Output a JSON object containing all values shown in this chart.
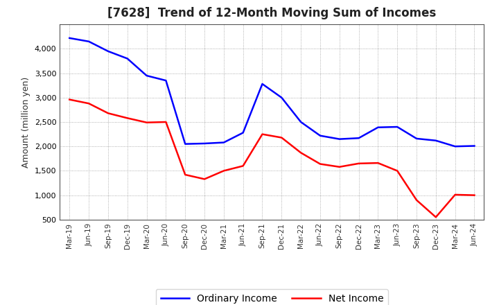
{
  "title": "[7628]  Trend of 12-Month Moving Sum of Incomes",
  "ylabel": "Amount (million yen)",
  "fig_background": "#ffffff",
  "plot_background": "#ffffff",
  "x_labels": [
    "Mar-19",
    "Jun-19",
    "Sep-19",
    "Dec-19",
    "Mar-20",
    "Jun-20",
    "Sep-20",
    "Dec-20",
    "Mar-21",
    "Jun-21",
    "Sep-21",
    "Dec-21",
    "Mar-22",
    "Jun-22",
    "Sep-22",
    "Dec-22",
    "Mar-23",
    "Jun-23",
    "Sep-23",
    "Dec-23",
    "Mar-24",
    "Jun-24"
  ],
  "ordinary_income": [
    4220,
    4150,
    3950,
    3800,
    3450,
    3350,
    2050,
    2060,
    2080,
    2280,
    3280,
    3000,
    2500,
    2220,
    2150,
    2170,
    2390,
    2400,
    2160,
    2120,
    2000,
    2010
  ],
  "net_income": [
    2960,
    2880,
    2680,
    2580,
    2490,
    2500,
    1420,
    1330,
    1500,
    1600,
    2250,
    2180,
    1870,
    1640,
    1580,
    1650,
    1660,
    1500,
    900,
    550,
    1010,
    1000
  ],
  "ordinary_color": "#0000ff",
  "net_color": "#ff0000",
  "ylim_min": 500,
  "ylim_max": 4500,
  "yticks": [
    500,
    1000,
    1500,
    2000,
    2500,
    3000,
    3500,
    4000
  ],
  "grid_color": "#aaaaaa",
  "legend_labels": [
    "Ordinary Income",
    "Net Income"
  ]
}
